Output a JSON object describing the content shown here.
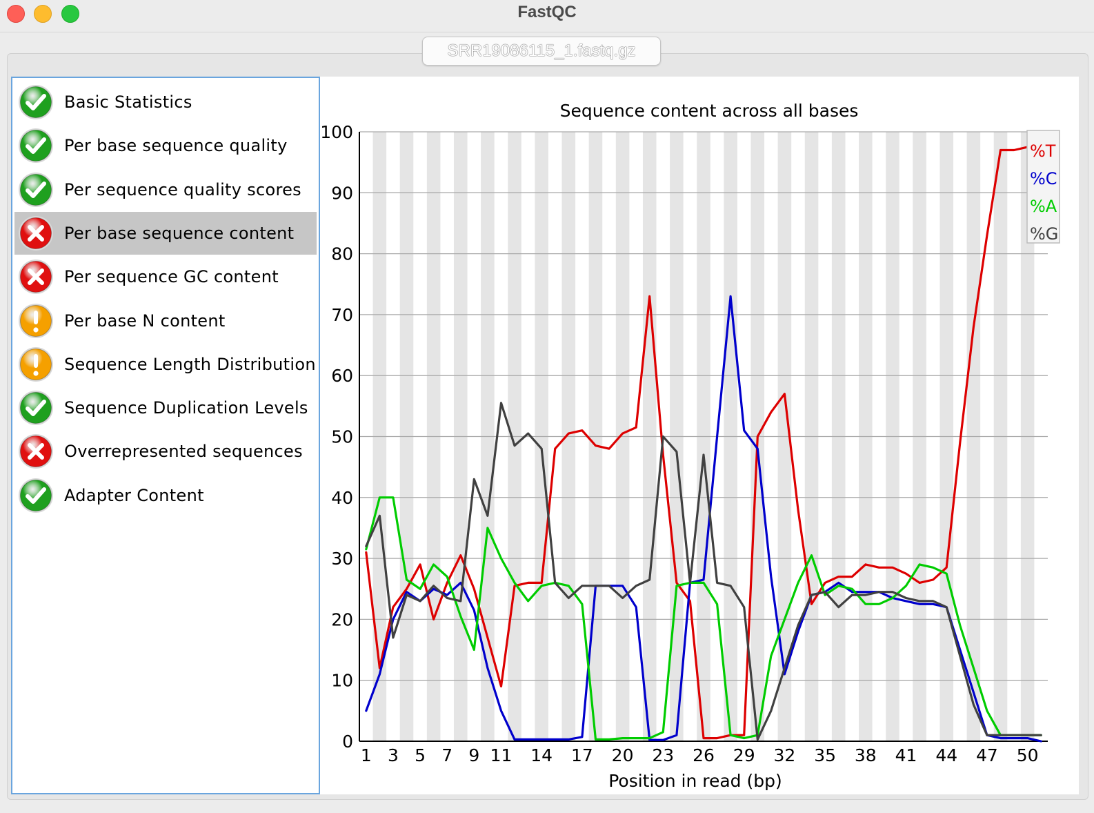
{
  "window": {
    "title": "FastQC"
  },
  "file_tab": {
    "label": "SRR19086115_1.fastq.gz"
  },
  "modules": [
    {
      "label": "Basic Statistics",
      "status": "pass",
      "icon": "check-icon"
    },
    {
      "label": "Per base sequence quality",
      "status": "pass",
      "icon": "check-icon"
    },
    {
      "label": "Per sequence quality scores",
      "status": "pass",
      "icon": "check-icon"
    },
    {
      "label": "Per base sequence content",
      "status": "fail",
      "icon": "cross-icon",
      "selected": true
    },
    {
      "label": "Per sequence GC content",
      "status": "fail",
      "icon": "cross-icon"
    },
    {
      "label": "Per base N content",
      "status": "warn",
      "icon": "exclamation-icon"
    },
    {
      "label": "Sequence Length Distribution",
      "status": "warn",
      "icon": "exclamation-icon"
    },
    {
      "label": "Sequence Duplication Levels",
      "status": "pass",
      "icon": "check-icon"
    },
    {
      "label": "Overrepresented sequences",
      "status": "fail",
      "icon": "cross-icon"
    },
    {
      "label": "Adapter Content",
      "status": "pass",
      "icon": "check-icon"
    }
  ],
  "status_colors": {
    "pass": "#1fa01f",
    "fail": "#e01010",
    "warn": "#f5a000"
  },
  "chart_data": {
    "type": "line",
    "title": "Sequence content across all bases",
    "xlabel": "Position in read (bp)",
    "ylabel": "",
    "ylim": [
      0,
      100
    ],
    "yticks": [
      0,
      10,
      20,
      30,
      40,
      50,
      60,
      70,
      80,
      90,
      100
    ],
    "x": [
      1,
      2,
      3,
      4,
      5,
      6,
      7,
      8,
      9,
      10,
      11,
      12,
      13,
      14,
      15,
      16,
      17,
      18,
      19,
      20,
      21,
      22,
      23,
      24,
      25,
      26,
      27,
      28,
      29,
      30,
      31,
      32,
      33,
      34,
      35,
      36,
      37,
      38,
      39,
      40,
      41,
      42,
      43,
      44,
      45,
      46,
      47,
      48,
      49,
      50,
      51
    ],
    "xtick_labels": [
      "1",
      "3",
      "5",
      "7",
      "9",
      "11",
      "14",
      "17",
      "20",
      "23",
      "26",
      "29",
      "32",
      "35",
      "38",
      "41",
      "44",
      "47",
      "50"
    ],
    "xtick_positions": [
      1,
      3,
      5,
      7,
      9,
      11,
      14,
      17,
      20,
      23,
      26,
      29,
      32,
      35,
      38,
      41,
      44,
      47,
      50
    ],
    "grid": true,
    "legend_position": "top-right",
    "series": [
      {
        "name": "%T",
        "color": "#dd0000",
        "values": [
          31,
          12,
          22,
          25,
          29,
          20,
          26,
          30.5,
          25,
          17,
          9,
          25.5,
          26,
          26,
          48,
          50.5,
          51,
          48.5,
          48,
          50.5,
          51.5,
          73,
          47,
          26,
          23,
          0.5,
          0.5,
          1,
          1,
          50,
          54,
          57,
          38,
          22.5,
          26,
          27,
          27,
          29,
          28.5,
          28.5,
          27.5,
          26,
          26.5,
          28.5,
          49,
          68,
          83,
          97,
          97,
          97.5,
          97.5
        ]
      },
      {
        "name": "%C",
        "color": "#0000cc",
        "values": [
          5,
          11,
          20,
          24.5,
          23,
          25,
          24,
          26,
          21.5,
          12,
          5,
          0.3,
          0.3,
          0.3,
          0.3,
          0.3,
          0.7,
          25.5,
          25.5,
          25.5,
          22,
          0.2,
          0.2,
          1,
          26,
          26.5,
          50,
          73,
          51,
          48,
          27,
          11,
          18,
          24,
          24.5,
          26,
          24.5,
          24.5,
          24.5,
          23.5,
          23,
          22.5,
          22.5,
          22,
          15,
          8,
          1,
          0.5,
          0.5,
          0.5,
          0
        ]
      },
      {
        "name": "%A",
        "color": "#00cc00",
        "values": [
          31.5,
          40,
          40,
          26.5,
          25,
          29,
          27,
          20.5,
          15,
          35,
          30,
          26,
          23,
          25.5,
          26,
          25.5,
          22.5,
          0.3,
          0.3,
          0.5,
          0.5,
          0.5,
          1.5,
          25.5,
          26,
          26,
          22.5,
          1,
          0.5,
          1,
          14,
          20,
          26,
          30.5,
          24,
          25.5,
          25,
          22.5,
          22.5,
          23.5,
          25.5,
          29,
          28.5,
          27.5,
          19,
          12,
          5,
          1,
          1,
          1,
          1
        ]
      },
      {
        "name": "%G",
        "color": "#404040",
        "values": [
          32,
          37,
          17,
          24,
          23,
          25.5,
          23.5,
          23,
          43,
          37,
          55.5,
          48.5,
          50.5,
          48,
          26,
          23.5,
          25.5,
          25.5,
          25.5,
          23.5,
          25.5,
          26.5,
          50,
          47.5,
          26,
          47,
          26,
          25.5,
          22,
          0.3,
          5,
          12,
          19,
          24,
          24.5,
          22,
          24,
          24,
          24.5,
          24.5,
          23.5,
          23,
          23,
          22,
          14,
          6,
          1,
          1,
          1,
          1,
          1
        ]
      }
    ]
  }
}
